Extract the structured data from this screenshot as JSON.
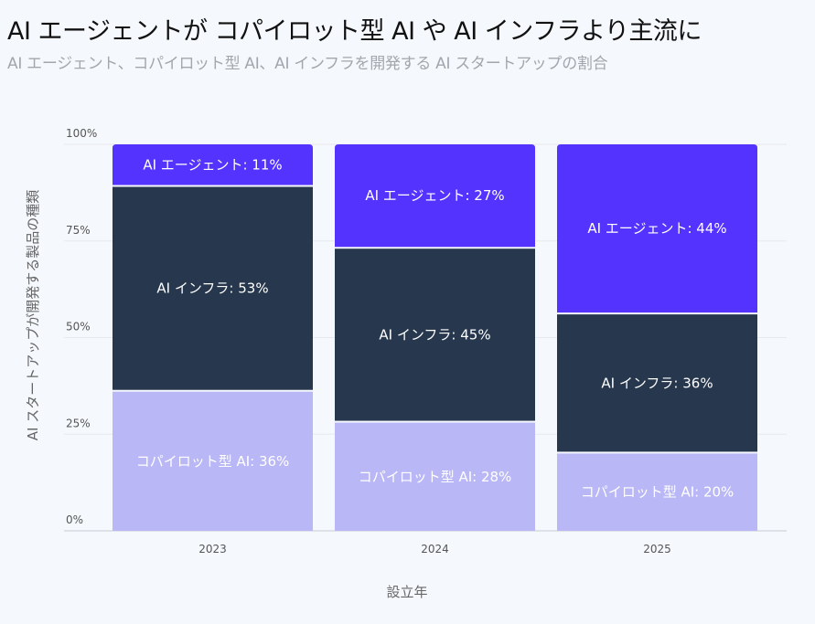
{
  "chart_data": {
    "type": "bar",
    "stacked": true,
    "title": "AI エージェントが コパイロット型 AI や AI インフラより主流に",
    "subtitle": "AI エージェント、コパイロット型 AI、AI インフラを開発する AI スタートアップの割合",
    "xlabel": "設立年",
    "ylabel": "AI スタートアップが開発する製品の種類",
    "categories": [
      "2023",
      "2024",
      "2025"
    ],
    "ylim": [
      0,
      100
    ],
    "yticks": [
      "0%",
      "25%",
      "50%",
      "75%",
      "100%"
    ],
    "grid": true,
    "series": [
      {
        "name": "コパイロット型 AI",
        "values": [
          36,
          28,
          20
        ],
        "color": "#b9b7f5",
        "labels": [
          "コパイロット型 AI: 36%",
          "コパイロット型 AI: 28%",
          "コパイロット型 AI: 20%"
        ]
      },
      {
        "name": "AI インフラ",
        "values": [
          53,
          45,
          36
        ],
        "color": "#27374d",
        "labels": [
          "AI インフラ: 53%",
          "AI インフラ: 45%",
          "AI インフラ: 36%"
        ]
      },
      {
        "name": "AI エージェント",
        "values": [
          11,
          27,
          44
        ],
        "color": "#5533ff",
        "labels": [
          "AI エージェント: 11%",
          "AI エージェント: 27%",
          "AI エージェント: 44%"
        ]
      }
    ]
  }
}
